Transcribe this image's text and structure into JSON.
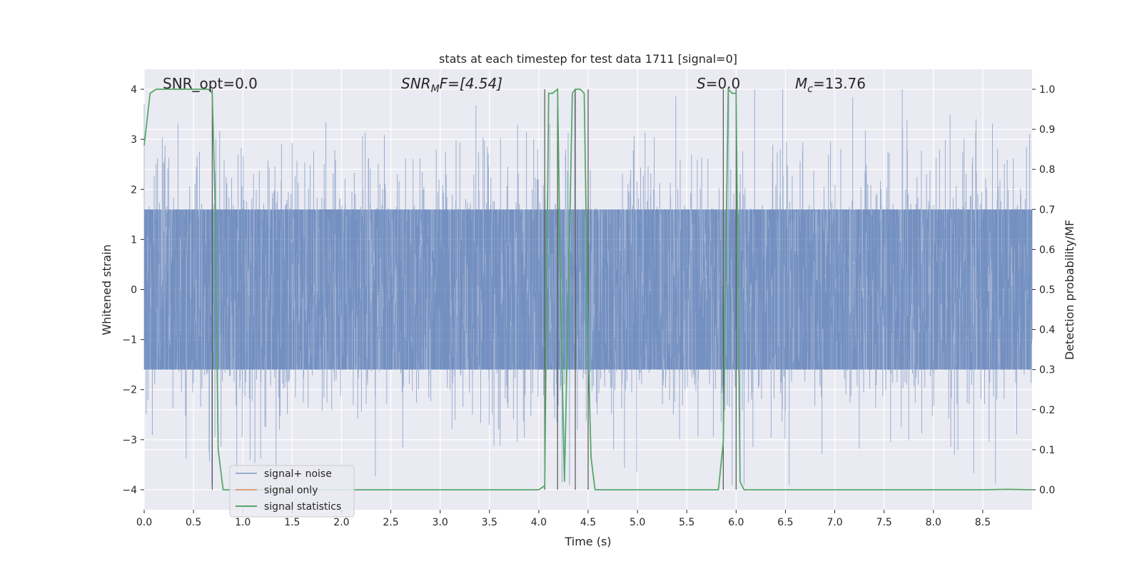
{
  "chart_data": {
    "type": "line",
    "title": "stats at each timestep for test data 1711 [signal=0]",
    "xlabel": "Time (s)",
    "ylabel_left": "Whitened strain",
    "ylabel_right": "Detection probability/MF",
    "xlim": [
      0.0,
      9.0
    ],
    "ylim_left": [
      -4.4,
      4.4
    ],
    "ylim_right": [
      -0.05,
      1.05
    ],
    "x_ticks": [
      "0.0",
      "0.5",
      "1.0",
      "1.5",
      "2.0",
      "2.5",
      "3.0",
      "3.5",
      "4.0",
      "4.5",
      "5.0",
      "5.5",
      "6.0",
      "6.5",
      "7.0",
      "7.5",
      "8.0",
      "8.5"
    ],
    "y_ticks_left": [
      "−4",
      "−3",
      "−2",
      "−1",
      "0",
      "1",
      "2",
      "3",
      "4"
    ],
    "y_ticks_right": [
      "0.0",
      "0.1",
      "0.2",
      "0.3",
      "0.4",
      "0.5",
      "0.6",
      "0.7",
      "0.8",
      "0.9",
      "1.0"
    ],
    "grid": true,
    "background": "#eaeaf2",
    "annotations": {
      "snr_opt": "SNR_opt=0.0",
      "snr_mf_main": "SNR",
      "snr_mf_sub": "M",
      "snr_mf_rest": "F=[4.54]",
      "s_main": "S",
      "s_rest": "=0.0",
      "mc_main": "M",
      "mc_sub": "c",
      "mc_rest": "=13.76"
    },
    "vertical_lines_x": [
      0.69,
      4.06,
      4.19,
      4.37,
      4.5,
      5.87,
      6.0
    ],
    "series": [
      {
        "name": "signal+ noise",
        "axis": "left",
        "color": "#4c72b0",
        "description_values": {
          "typical_amplitude": 1.6,
          "peak_amplitude": 4.0,
          "min_amplitude": -3.9
        }
      },
      {
        "name": "signal only",
        "axis": "left",
        "color": "#dd8452",
        "values": []
      },
      {
        "name": "signal statistics",
        "axis": "right",
        "color": "#55a868",
        "x": [
          0.0,
          0.06,
          0.12,
          0.2,
          0.3,
          0.4,
          0.5,
          0.6,
          0.65,
          0.69,
          0.72,
          0.75,
          0.8,
          0.85,
          1.0,
          2.0,
          3.0,
          3.5,
          4.0,
          4.06,
          4.1,
          4.14,
          4.19,
          4.22,
          4.26,
          4.3,
          4.34,
          4.37,
          4.42,
          4.46,
          4.5,
          4.53,
          4.57,
          4.62,
          4.7,
          5.0,
          5.5,
          5.82,
          5.87,
          5.92,
          5.96,
          6.0,
          6.04,
          6.08,
          6.13,
          6.5,
          7.0,
          8.0,
          8.5,
          8.75,
          9.0
        ],
        "y": [
          0.86,
          0.99,
          1.0,
          1.0,
          1.0,
          1.0,
          1.0,
          1.0,
          1.0,
          0.99,
          0.7,
          0.1,
          0.0,
          0.0,
          0.0,
          0.0,
          0.0,
          0.0,
          0.0,
          0.01,
          0.99,
          0.99,
          1.0,
          0.5,
          0.02,
          0.5,
          0.99,
          1.0,
          1.0,
          0.99,
          0.35,
          0.08,
          0.0,
          0.0,
          0.0,
          0.0,
          0.0,
          0.0,
          0.12,
          1.0,
          0.99,
          0.99,
          0.02,
          0.0,
          0.0,
          0.0,
          0.0,
          0.0,
          0.0,
          0.001,
          0.0
        ]
      }
    ],
    "legend": {
      "placement": "lower-left",
      "entries": [
        "signal+ noise",
        "signal only",
        "signal statistics"
      ]
    }
  }
}
